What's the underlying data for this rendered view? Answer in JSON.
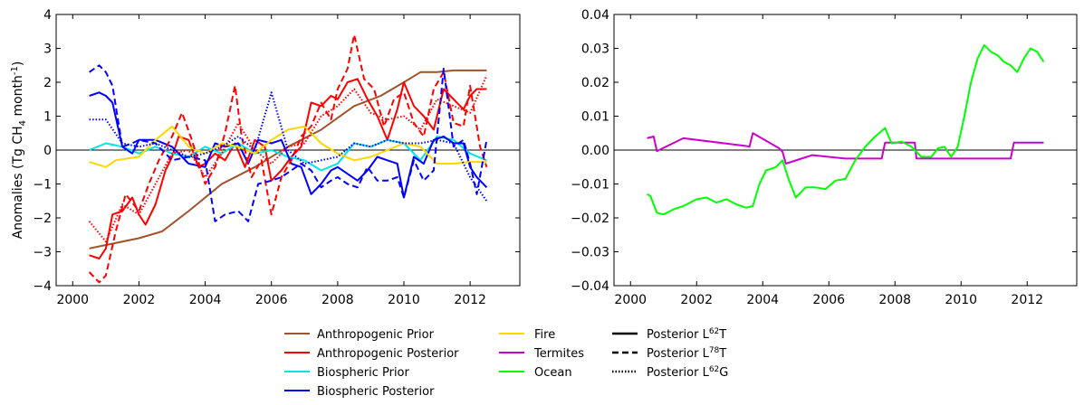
{
  "chart_data": [
    {
      "type": "line",
      "ylabel_parts": [
        "Anomalies (Tg CH",
        "4",
        " month",
        "-1",
        ")"
      ],
      "xlim": [
        1999.5,
        2013.5
      ],
      "ylim": [
        -4,
        4
      ],
      "xticks": [
        "2000",
        "2002",
        "2004",
        "2006",
        "2008",
        "2010",
        "2012"
      ],
      "yticks": [
        "−4",
        "−3",
        "−2",
        "−1",
        "0",
        "1",
        "2",
        "3",
        "4"
      ],
      "zero_line": true,
      "series": [
        {
          "name": "Anthropogenic Prior",
          "color": "#a0522d",
          "style": "solid",
          "x": [
            2000.5,
            2001,
            2002,
            2002.7,
            2003.5,
            2004.5,
            2005.5,
            2006.5,
            2007.5,
            2008.5,
            2009.3,
            2010,
            2010.5,
            2011,
            2011.5,
            2012,
            2012.5
          ],
          "y": [
            -2.9,
            -2.8,
            -2.6,
            -2.4,
            -1.8,
            -1.0,
            -0.5,
            0.1,
            0.6,
            1.3,
            1.6,
            2.0,
            2.3,
            2.3,
            2.35,
            2.35,
            2.35
          ]
        },
        {
          "name": "Anthropogenic Posterior",
          "color": "#ff0000",
          "style": "solid",
          "x": [
            2000.5,
            2000.8,
            2001.0,
            2001.2,
            2001.5,
            2001.8,
            2002.0,
            2002.2,
            2002.5,
            2002.8,
            2003.0,
            2003.2,
            2003.5,
            2003.8,
            2004.0,
            2004.3,
            2004.6,
            2004.9,
            2005.2,
            2005.5,
            2005.8,
            2006.0,
            2006.3,
            2006.6,
            2006.9,
            2007.2,
            2007.5,
            2007.8,
            2008.0,
            2008.3,
            2008.6,
            2008.9,
            2009.2,
            2009.5,
            2009.8,
            2010.0,
            2010.3,
            2010.6,
            2010.9,
            2011.2,
            2011.5,
            2011.8,
            2012.0,
            2012.2,
            2012.5
          ],
          "y": [
            -3.1,
            -3.2,
            -2.9,
            -1.9,
            -1.8,
            -1.4,
            -1.9,
            -2.2,
            -1.6,
            -0.6,
            -0.2,
            0.4,
            0.3,
            -0.5,
            -0.4,
            -0.1,
            -0.3,
            0.2,
            -0.5,
            0.3,
            0.1,
            -0.9,
            -0.6,
            -0.2,
            0.1,
            1.4,
            1.3,
            1.6,
            1.5,
            2.0,
            2.1,
            1.5,
            1.0,
            0.3,
            1.2,
            2.0,
            1.3,
            1.0,
            0.6,
            1.8,
            1.5,
            1.2,
            1.6,
            1.8,
            1.8
          ]
        },
        {
          "name": "Biospheric Prior",
          "color": "#00e5e5",
          "style": "solid",
          "x": [
            2000.5,
            2001.0,
            2001.5,
            2002.0,
            2002.5,
            2003.0,
            2003.5,
            2004.0,
            2004.5,
            2005.0,
            2005.5,
            2006.0,
            2006.5,
            2007.0,
            2007.5,
            2008.0,
            2008.5,
            2009.0,
            2009.5,
            2010.0,
            2010.5,
            2011.0,
            2011.5,
            2012.0,
            2012.5
          ],
          "y": [
            0.0,
            0.2,
            0.1,
            -0.1,
            0.1,
            -0.1,
            -0.2,
            0.1,
            -0.1,
            0.2,
            -0.1,
            0.0,
            -0.2,
            -0.3,
            -0.6,
            -0.4,
            0.2,
            0.1,
            0.3,
            0.2,
            -0.3,
            0.4,
            0.3,
            -0.1,
            -0.3
          ]
        },
        {
          "name": "Biospheric Posterior",
          "color": "#0000ff",
          "style": "solid",
          "x": [
            2000.5,
            2000.8,
            2001.0,
            2001.2,
            2001.5,
            2001.8,
            2002.0,
            2002.5,
            2003.0,
            2003.5,
            2004.0,
            2004.3,
            2004.6,
            2005.0,
            2005.3,
            2005.6,
            2006.0,
            2006.3,
            2006.6,
            2006.9,
            2007.2,
            2007.5,
            2007.8,
            2008.0,
            2008.3,
            2008.6,
            2008.9,
            2009.2,
            2009.5,
            2009.8,
            2010.0,
            2010.3,
            2010.6,
            2010.9,
            2011.2,
            2011.5,
            2011.8,
            2012.0,
            2012.2,
            2012.5
          ],
          "y": [
            1.6,
            1.7,
            1.6,
            1.4,
            0.1,
            -0.1,
            0.3,
            0.3,
            0.1,
            -0.4,
            -0.5,
            0.2,
            0.1,
            0.2,
            -0.4,
            0.3,
            0.2,
            0.3,
            -0.4,
            -0.5,
            -1.3,
            -1.0,
            -0.6,
            -0.5,
            -0.7,
            -0.9,
            -0.6,
            -0.2,
            -0.3,
            -0.4,
            -1.4,
            -0.2,
            -0.4,
            0.3,
            0.4,
            0.2,
            0.2,
            -0.5,
            -0.8,
            -1.1
          ]
        },
        {
          "name": "Fire",
          "color": "#ffd700",
          "style": "solid",
          "x": [
            2000.5,
            2001.0,
            2001.3,
            2002.0,
            2002.5,
            2003.0,
            2003.5,
            2004.0,
            2004.5,
            2005.0,
            2005.5,
            2006.0,
            2006.5,
            2007.0,
            2007.5,
            2008.0,
            2008.5,
            2009.0,
            2009.5,
            2010.0,
            2010.5,
            2011.0,
            2011.5,
            2012.0,
            2012.5
          ],
          "y": [
            -0.35,
            -0.5,
            -0.3,
            -0.2,
            0.3,
            0.7,
            0.1,
            -0.1,
            0.2,
            0.1,
            -0.1,
            0.3,
            0.6,
            0.7,
            0.2,
            -0.1,
            -0.3,
            -0.2,
            0.0,
            0.2,
            0.1,
            -0.4,
            -0.4,
            -0.35,
            -0.35
          ]
        },
        {
          "name": "Anthropogenic Posterior L78T",
          "color": "#ff0000",
          "style": "dashed",
          "x": [
            2000.5,
            2000.8,
            2001.0,
            2001.3,
            2001.6,
            2002.0,
            2002.3,
            2002.6,
            2003.0,
            2003.3,
            2003.6,
            2004.0,
            2004.3,
            2004.6,
            2004.9,
            2005.1,
            2005.4,
            2005.7,
            2006.0,
            2006.3,
            2006.6,
            2006.9,
            2007.2,
            2007.5,
            2007.8,
            2008.0,
            2008.3,
            2008.5,
            2008.8,
            2009.1,
            2009.4,
            2009.7,
            2010.0,
            2010.3,
            2010.6,
            2010.9,
            2011.2,
            2011.5,
            2011.8,
            2012.0,
            2012.3,
            2012.5
          ],
          "y": [
            -3.6,
            -3.9,
            -3.7,
            -2.4,
            -1.3,
            -1.8,
            -1.0,
            -0.3,
            0.4,
            1.1,
            0.3,
            -1.0,
            -0.5,
            0.5,
            1.9,
            0.4,
            -0.8,
            -0.3,
            -1.9,
            -0.8,
            -0.3,
            0.4,
            0.7,
            1.4,
            0.9,
            1.8,
            2.4,
            3.4,
            2.1,
            1.8,
            0.7,
            1.5,
            1.7,
            0.8,
            0.4,
            1.8,
            2.3,
            0.8,
            0.7,
            1.9,
            0.1,
            -0.5
          ]
        },
        {
          "name": "Biospheric Posterior L78T",
          "color": "#0000ff",
          "style": "dashed",
          "x": [
            2000.5,
            2000.8,
            2001.0,
            2001.2,
            2001.5,
            2001.8,
            2002.0,
            2002.5,
            2003.0,
            2003.5,
            2004.0,
            2004.3,
            2004.6,
            2005.0,
            2005.3,
            2005.6,
            2006.0,
            2006.3,
            2006.6,
            2006.9,
            2007.2,
            2007.5,
            2007.8,
            2008.0,
            2008.3,
            2008.6,
            2008.9,
            2009.2,
            2009.5,
            2009.8,
            2010.0,
            2010.3,
            2010.6,
            2010.9,
            2011.2,
            2011.5,
            2011.8,
            2012.0,
            2012.2,
            2012.5
          ],
          "y": [
            2.3,
            2.5,
            2.3,
            1.9,
            0.1,
            0.2,
            0.3,
            0.2,
            -0.3,
            -0.2,
            -0.3,
            -2.1,
            -1.9,
            -1.8,
            -2.1,
            -1.0,
            -0.9,
            -0.8,
            -0.6,
            -0.4,
            -0.6,
            -1.1,
            -0.9,
            -0.8,
            -1.0,
            -1.1,
            -0.5,
            -0.9,
            -0.9,
            -0.8,
            -1.4,
            -0.3,
            -0.9,
            -0.6,
            2.4,
            0.1,
            0.3,
            -0.4,
            -1.3,
            0.3
          ]
        },
        {
          "name": "Anthropogenic Posterior L62G",
          "color": "#ff0000",
          "style": "dotted",
          "x": [
            2000.5,
            2001.0,
            2001.5,
            2002.0,
            2002.5,
            2003.0,
            2003.5,
            2004.0,
            2004.5,
            2005.0,
            2005.5,
            2006.0,
            2006.5,
            2007.0,
            2007.5,
            2008.0,
            2008.5,
            2009.0,
            2009.5,
            2010.0,
            2010.5,
            2011.0,
            2011.5,
            2012.0,
            2012.5
          ],
          "y": [
            -2.1,
            -2.7,
            -1.6,
            -1.9,
            -1.0,
            -0.1,
            0.0,
            -0.8,
            -0.1,
            0.8,
            0.0,
            -0.4,
            0.1,
            0.2,
            1.0,
            1.3,
            1.8,
            1.1,
            0.9,
            1.0,
            0.6,
            1.5,
            1.3,
            1.1,
            2.2
          ]
        },
        {
          "name": "Biospheric Posterior L62G",
          "color": "#0000ff",
          "style": "dotted",
          "x": [
            2000.5,
            2001.0,
            2001.5,
            2002.0,
            2002.5,
            2003.0,
            2003.5,
            2004.0,
            2004.5,
            2005.0,
            2005.5,
            2006.0,
            2006.5,
            2007.0,
            2007.5,
            2008.0,
            2008.5,
            2009.0,
            2009.5,
            2010.0,
            2010.5,
            2011.0,
            2011.5,
            2012.0,
            2012.5
          ],
          "y": [
            0.9,
            0.9,
            0.2,
            0.1,
            0.2,
            0.0,
            -0.2,
            -0.1,
            0.1,
            0.4,
            0.0,
            1.7,
            0.0,
            -0.4,
            -0.3,
            -0.2,
            0.2,
            0.1,
            0.3,
            0.2,
            0.2,
            0.3,
            0.2,
            -0.8,
            -1.5
          ]
        }
      ]
    },
    {
      "type": "line",
      "xlim": [
        1999.5,
        2013.5
      ],
      "ylim": [
        -0.04,
        0.04
      ],
      "xticks": [
        "2000",
        "2002",
        "2004",
        "2006",
        "2008",
        "2010",
        "2012"
      ],
      "yticks": [
        "−0.04",
        "−0.03",
        "−0.02",
        "−0.01",
        "0.00",
        "0.01",
        "0.02",
        "0.03",
        "0.04"
      ],
      "zero_line": true,
      "series": [
        {
          "name": "Termites",
          "color": "#cc00cc",
          "style": "solid",
          "x": [
            2000.5,
            2000.7,
            2000.8,
            2001.6,
            2003.5,
            2003.6,
            2003.7,
            2004.5,
            2004.6,
            2004.7,
            2005.5,
            2006.5,
            2007.0,
            2007.6,
            2007.7,
            2008.6,
            2008.65,
            2008.7,
            2009.0,
            2011.5,
            2011.6,
            2012.0,
            2012.5
          ],
          "y": [
            0.0035,
            0.004,
            -0.0003,
            0.0035,
            0.0012,
            0.001,
            0.005,
            0.0005,
            -0.0005,
            -0.004,
            -0.0015,
            -0.0025,
            -0.0025,
            -0.0025,
            0.0022,
            0.0022,
            -0.0025,
            -0.0025,
            -0.0025,
            -0.0025,
            0.0022,
            0.0022,
            0.0022
          ]
        },
        {
          "name": "Ocean",
          "color": "#00ff00",
          "style": "solid",
          "x": [
            2000.5,
            2000.6,
            2000.8,
            2001.0,
            2001.3,
            2001.6,
            2002.0,
            2002.3,
            2002.6,
            2002.9,
            2003.2,
            2003.5,
            2003.7,
            2003.9,
            2004.1,
            2004.4,
            2004.6,
            2004.8,
            2005.0,
            2005.3,
            2005.6,
            2005.9,
            2006.2,
            2006.5,
            2006.8,
            2007.1,
            2007.4,
            2007.7,
            2007.9,
            2008.2,
            2008.5,
            2008.8,
            2009.1,
            2009.3,
            2009.5,
            2009.7,
            2009.9,
            2010.1,
            2010.3,
            2010.5,
            2010.7,
            2010.9,
            2011.1,
            2011.3,
            2011.5,
            2011.7,
            2011.9,
            2012.1,
            2012.3,
            2012.5
          ],
          "y": [
            -0.013,
            -0.0135,
            -0.0185,
            -0.019,
            -0.0175,
            -0.0165,
            -0.0145,
            -0.014,
            -0.0155,
            -0.0145,
            -0.016,
            -0.017,
            -0.0165,
            -0.01,
            -0.006,
            -0.005,
            -0.003,
            -0.009,
            -0.014,
            -0.011,
            -0.011,
            -0.0115,
            -0.009,
            -0.0085,
            -0.003,
            0.001,
            0.004,
            0.0065,
            0.002,
            0.0025,
            0.001,
            -0.002,
            -0.002,
            0.0005,
            0.001,
            -0.002,
            0.001,
            0.01,
            0.02,
            0.027,
            0.031,
            0.029,
            0.028,
            0.026,
            0.025,
            0.023,
            0.027,
            0.03,
            0.029,
            0.026
          ]
        }
      ]
    }
  ],
  "legend": {
    "col1": [
      "Anthropogenic Prior",
      "Anthropogenic Posterior",
      "Biospheric Prior",
      "Biospheric Posterior"
    ],
    "col2": [
      "Fire",
      "Termites",
      "Ocean"
    ],
    "col3": [
      {
        "prefix": "Posterior L",
        "sup": "62",
        "suffix": "T",
        "style": "solid"
      },
      {
        "prefix": "Posterior L",
        "sup": "78",
        "suffix": "T",
        "style": "dashed"
      },
      {
        "prefix": "Posterior L",
        "sup": "62",
        "suffix": "G",
        "style": "dotted"
      }
    ],
    "colors": {
      "Anthropogenic Prior": "#a0522d",
      "Anthropogenic Posterior": "#ff0000",
      "Biospheric Prior": "#00e5e5",
      "Biospheric Posterior": "#0000ff",
      "Fire": "#ffd700",
      "Termites": "#cc00cc",
      "Ocean": "#00ff00"
    }
  }
}
